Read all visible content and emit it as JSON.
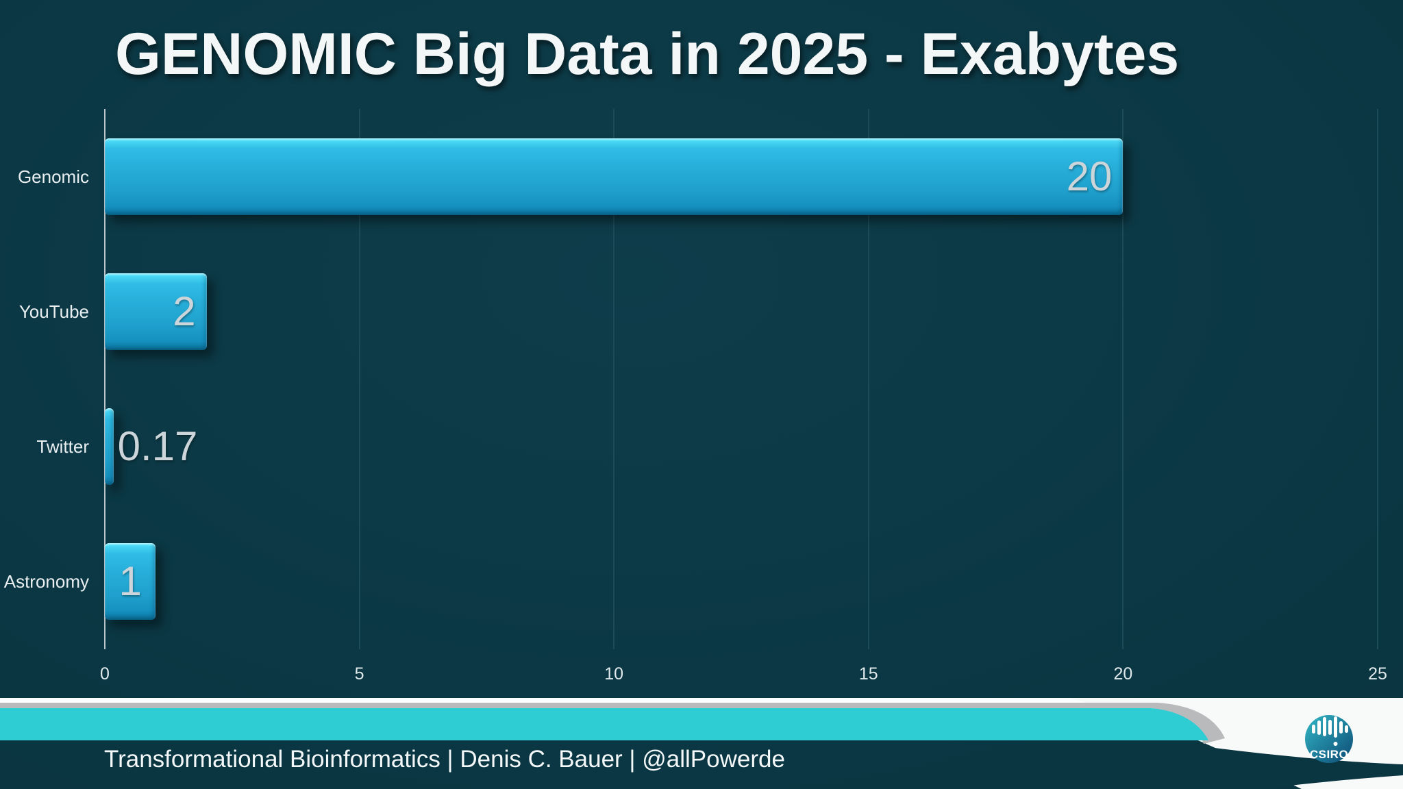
{
  "chart_data": {
    "type": "bar",
    "orientation": "horizontal",
    "title": "GENOMIC Big Data in 2025 - Exabytes",
    "categories": [
      "Genomic",
      "YouTube",
      "Twitter",
      "Astronomy"
    ],
    "values": [
      20,
      2,
      0.17,
      1
    ],
    "value_labels": [
      "20",
      "2",
      "0.17",
      "1"
    ],
    "label_placement": [
      "inside-right",
      "inside-right",
      "outside-right",
      "inside-center"
    ],
    "xlabel": "",
    "ylabel": "",
    "xlim": [
      0,
      25
    ],
    "xticks": [
      0,
      5,
      10,
      15,
      20,
      25
    ],
    "grid": true,
    "legend": false,
    "unit": "Exabytes"
  },
  "footer": {
    "credit": "Transformational Bioinformatics | Denis C. Bauer | @allPowerde",
    "logo_text": "CSIRO"
  },
  "colors": {
    "background": "#0a3642",
    "bar_body": "#27aed9",
    "bar_highlight": "#60ebfd",
    "bar_shadow_edge": "#0a6f96",
    "gridline": "#1d4b58",
    "axis_line": "#b9c8cd",
    "value_label": "#ccd5d9",
    "category_label": "#e9eff1",
    "teal_band": "#2ecdd4",
    "gray_band": "#b9babc",
    "swoosh_white": "#f8fafa",
    "logo_gradient_start": "#33b7c6",
    "logo_gradient_end": "#0c4a74"
  }
}
